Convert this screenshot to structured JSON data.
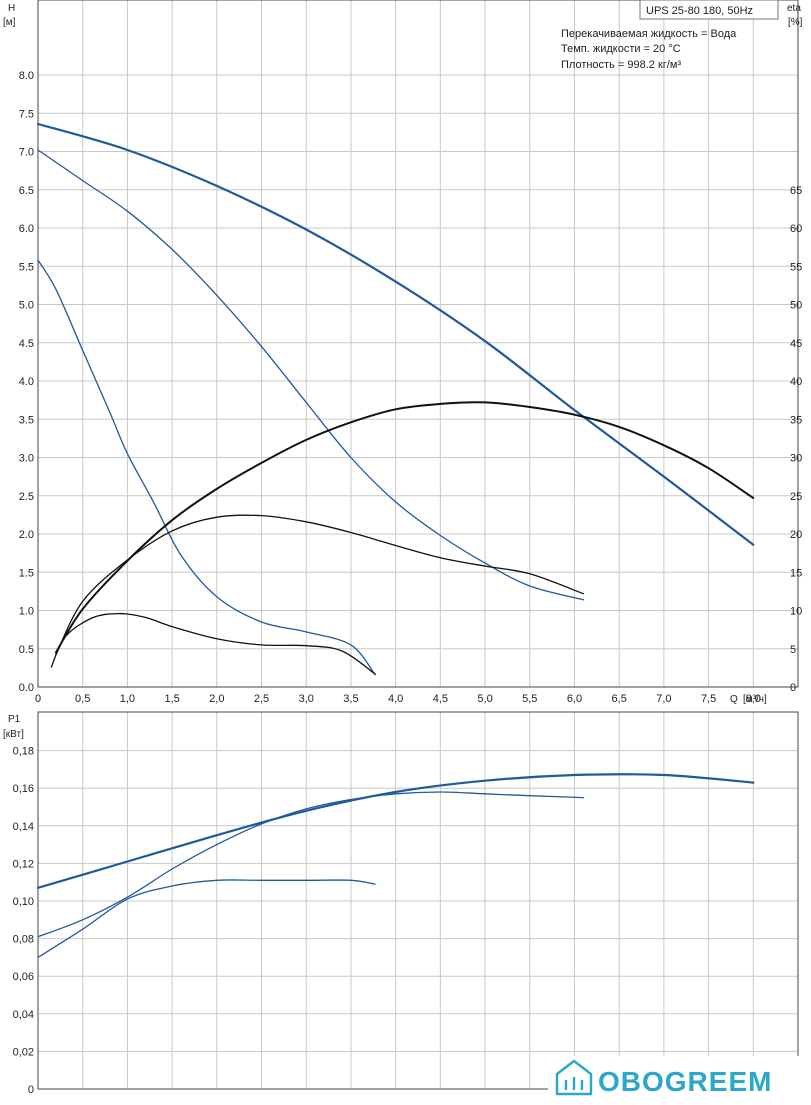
{
  "title_box": "UPS 25-80 180, 50Hz",
  "info_lines": [
    "Перекачиваемая жидкость = Вода",
    "Темп. жидкости = 20 °C",
    "Плотность = 998.2 кг/м³"
  ],
  "logo_text": "OBOGREEM",
  "colors": {
    "blue": "#1f5a9b",
    "black": "#111111",
    "grid": "#c8c8c8",
    "logo": "#2aa7c9"
  },
  "chart_data": [
    {
      "type": "line",
      "ylabel": "H",
      "yunit": "[м]",
      "y2label": "eta",
      "y2unit": "[%]",
      "xlabel": "Q",
      "xunit": "[м³/ч]",
      "xlim": [
        0,
        8.5
      ],
      "ylim": [
        0,
        8.0
      ],
      "y2lim": [
        0,
        80
      ],
      "x_ticks": [
        "0",
        "0,5",
        "1,0",
        "1,5",
        "2,0",
        "2,5",
        "3,0",
        "3,5",
        "4,0",
        "4,5",
        "5,0",
        "5,5",
        "6,0",
        "6,5",
        "7,0",
        "7,5",
        "8,0"
      ],
      "y_ticks": [
        "0.0",
        "0.5",
        "1.0",
        "1.5",
        "2.0",
        "2.5",
        "3.0",
        "3.5",
        "4.0",
        "4.5",
        "5.0",
        "5.5",
        "6.0",
        "6.5",
        "7.0",
        "7.5",
        "8.0"
      ],
      "y2_ticks": [
        "0",
        "5",
        "10",
        "15",
        "20",
        "25",
        "30",
        "35",
        "40",
        "45",
        "50",
        "55",
        "60",
        "65"
      ],
      "grid": true,
      "series": [
        {
          "color": "blue",
          "width": 2.2,
          "x": [
            0,
            1,
            2,
            3,
            4,
            5,
            6,
            7,
            8
          ],
          "y": [
            7.36,
            7.02,
            6.55,
            5.98,
            5.3,
            4.52,
            3.62,
            2.75,
            1.86
          ]
        },
        {
          "color": "blue",
          "width": 1.3,
          "x": [
            0,
            0.5,
            1,
            1.5,
            2,
            2.5,
            3,
            3.5,
            4,
            4.5,
            5,
            5.5,
            6.1
          ],
          "y": [
            7.02,
            6.62,
            6.22,
            5.72,
            5.12,
            4.45,
            3.72,
            3.0,
            2.42,
            1.98,
            1.62,
            1.32,
            1.14
          ]
        },
        {
          "color": "blue",
          "width": 1.3,
          "x": [
            0,
            0.2,
            0.5,
            0.8,
            1.0,
            1.3,
            1.6,
            2.0,
            2.5,
            3.0,
            3.5,
            3.77
          ],
          "y": [
            5.58,
            5.2,
            4.4,
            3.6,
            3.05,
            2.4,
            1.72,
            1.18,
            0.85,
            0.72,
            0.55,
            0.16
          ]
        },
        {
          "color": "black",
          "width": 2.0,
          "y2": true,
          "x": [
            0.2,
            0.5,
            1,
            1.5,
            2,
            2.5,
            3,
            3.5,
            4,
            4.5,
            5,
            5.5,
            6,
            6.5,
            7,
            7.5,
            8
          ],
          "y": [
            4.5,
            10.2,
            16.5,
            21.8,
            25.9,
            29.3,
            32.3,
            34.6,
            36.3,
            37.0,
            37.2,
            36.6,
            35.6,
            34.0,
            31.6,
            28.6,
            24.7
          ]
        },
        {
          "color": "black",
          "width": 1.3,
          "y2": true,
          "x": [
            0.2,
            0.5,
            1,
            1.5,
            2,
            2.5,
            3,
            3.5,
            4,
            4.5,
            5,
            5.5,
            6.1
          ],
          "y": [
            4.2,
            11.2,
            16.6,
            20.4,
            22.2,
            22.4,
            21.6,
            20.2,
            18.5,
            16.9,
            15.8,
            14.8,
            12.2
          ]
        },
        {
          "color": "black",
          "width": 1.3,
          "y2": true,
          "x": [
            0.15,
            0.3,
            0.6,
            0.9,
            1.2,
            1.5,
            2.0,
            2.5,
            3.0,
            3.4,
            3.77
          ],
          "y": [
            2.6,
            6.5,
            9.0,
            9.6,
            9.1,
            7.9,
            6.3,
            5.5,
            5.4,
            4.7,
            1.7
          ]
        }
      ]
    },
    {
      "type": "line",
      "ylabel": "P1",
      "yunit": "[кВт]",
      "xlim": [
        0,
        8.5
      ],
      "ylim": [
        0,
        0.19
      ],
      "y_ticks": [
        "0",
        "0,02",
        "0,04",
        "0,06",
        "0,08",
        "0,10",
        "0,12",
        "0,14",
        "0,16",
        "0,18"
      ],
      "grid": true,
      "series": [
        {
          "color": "blue",
          "width": 2.2,
          "x": [
            0,
            1,
            2,
            3,
            4,
            5,
            6,
            7,
            8
          ],
          "y": [
            0.107,
            0.121,
            0.135,
            0.148,
            0.158,
            0.164,
            0.167,
            0.167,
            0.163
          ]
        },
        {
          "color": "blue",
          "width": 1.3,
          "x": [
            0,
            0.5,
            1,
            1.5,
            2,
            2.5,
            3,
            3.5,
            4,
            4.5,
            5,
            5.5,
            6.1
          ],
          "y": [
            0.081,
            0.09,
            0.102,
            0.117,
            0.13,
            0.141,
            0.149,
            0.154,
            0.157,
            0.158,
            0.157,
            0.156,
            0.155
          ]
        },
        {
          "color": "blue",
          "width": 1.3,
          "x": [
            0,
            0.5,
            1,
            1.5,
            2,
            2.5,
            3,
            3.5,
            3.77
          ],
          "y": [
            0.07,
            0.085,
            0.101,
            0.108,
            0.111,
            0.111,
            0.111,
            0.111,
            0.109
          ]
        }
      ]
    }
  ]
}
